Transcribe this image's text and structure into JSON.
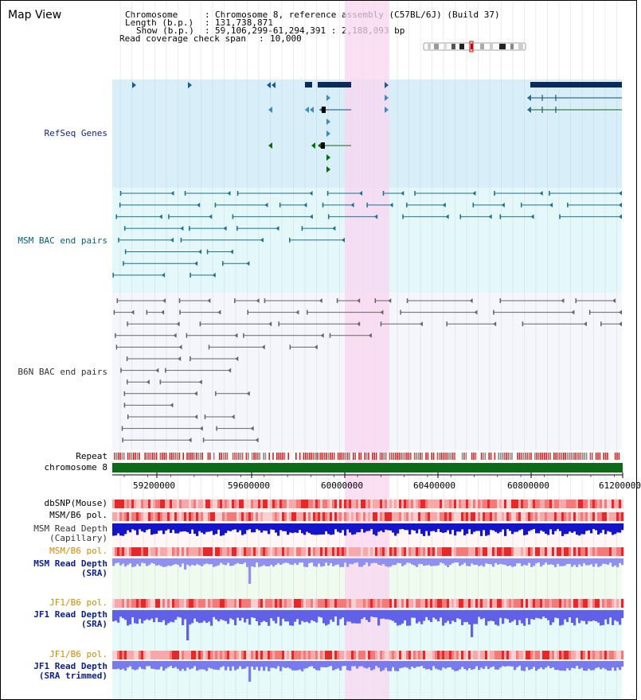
{
  "view_title": "Map View",
  "info": {
    "chromosome_key": "Chromosome",
    "chromosome_value": "Chromosome 8, reference assembly (C57BL/6J) (Build 37)",
    "length_key": "Length (b.p.)",
    "length_value": "131,738,871",
    "show_key": "Show (b.p.)",
    "show_value": "59,106,299-61,294,391 : 2,188,093 bp",
    "span_key": "Read coverage check span",
    "span_value": "10,000"
  },
  "tracks": {
    "refseq": "RefSeq Genes",
    "msm_bac": "MSM BAC end pairs",
    "b6n_bac": "B6N BAC end pairs",
    "repeat": "Repeat",
    "chromosome": "chromosome 8",
    "dbsnp": "dbSNP(Mouse)",
    "msm_b6_pol": "MSM/B6 pol.",
    "msm_read_depth_cap_1": "MSM Read Depth",
    "msm_read_depth_cap_2": "(Capillary)",
    "msm_b6_pol_sra": "MSM/B6 pol.",
    "msm_read_depth_sra_1": "MSM Read Depth",
    "msm_read_depth_sra_2": "(SRA)",
    "jf1_b6_pol": "JF1/B6 pol.",
    "jf1_read_depth_1": "JF1 Read Depth",
    "jf1_read_depth_2": "(SRA)",
    "jf1_b6_pol_trim": "JF1/B6 pol.",
    "jf1_read_depth_trim_1": "JF1 Read Depth",
    "jf1_read_depth_trim_2": "(SRA trimmed)"
  },
  "axis": {
    "ticks": [
      "59200000",
      "59600000",
      "60000000",
      "60400000",
      "60800000",
      "61200000"
    ]
  },
  "colors": {
    "refseq_bg": "#d8eef8",
    "msm_bg": "#e4f8fa",
    "b6n_bg": "#f5f6fb",
    "highlight": "#f9d6f0",
    "gene_dark": "#0a2a5e",
    "gene_green": "#0a6a10",
    "msm_line": "#1a7090",
    "b6n_line": "#666666",
    "chromosome_bar": "#0c6a18",
    "depth_blue": "#1414c8",
    "depth_light": "#7070f0"
  }
}
